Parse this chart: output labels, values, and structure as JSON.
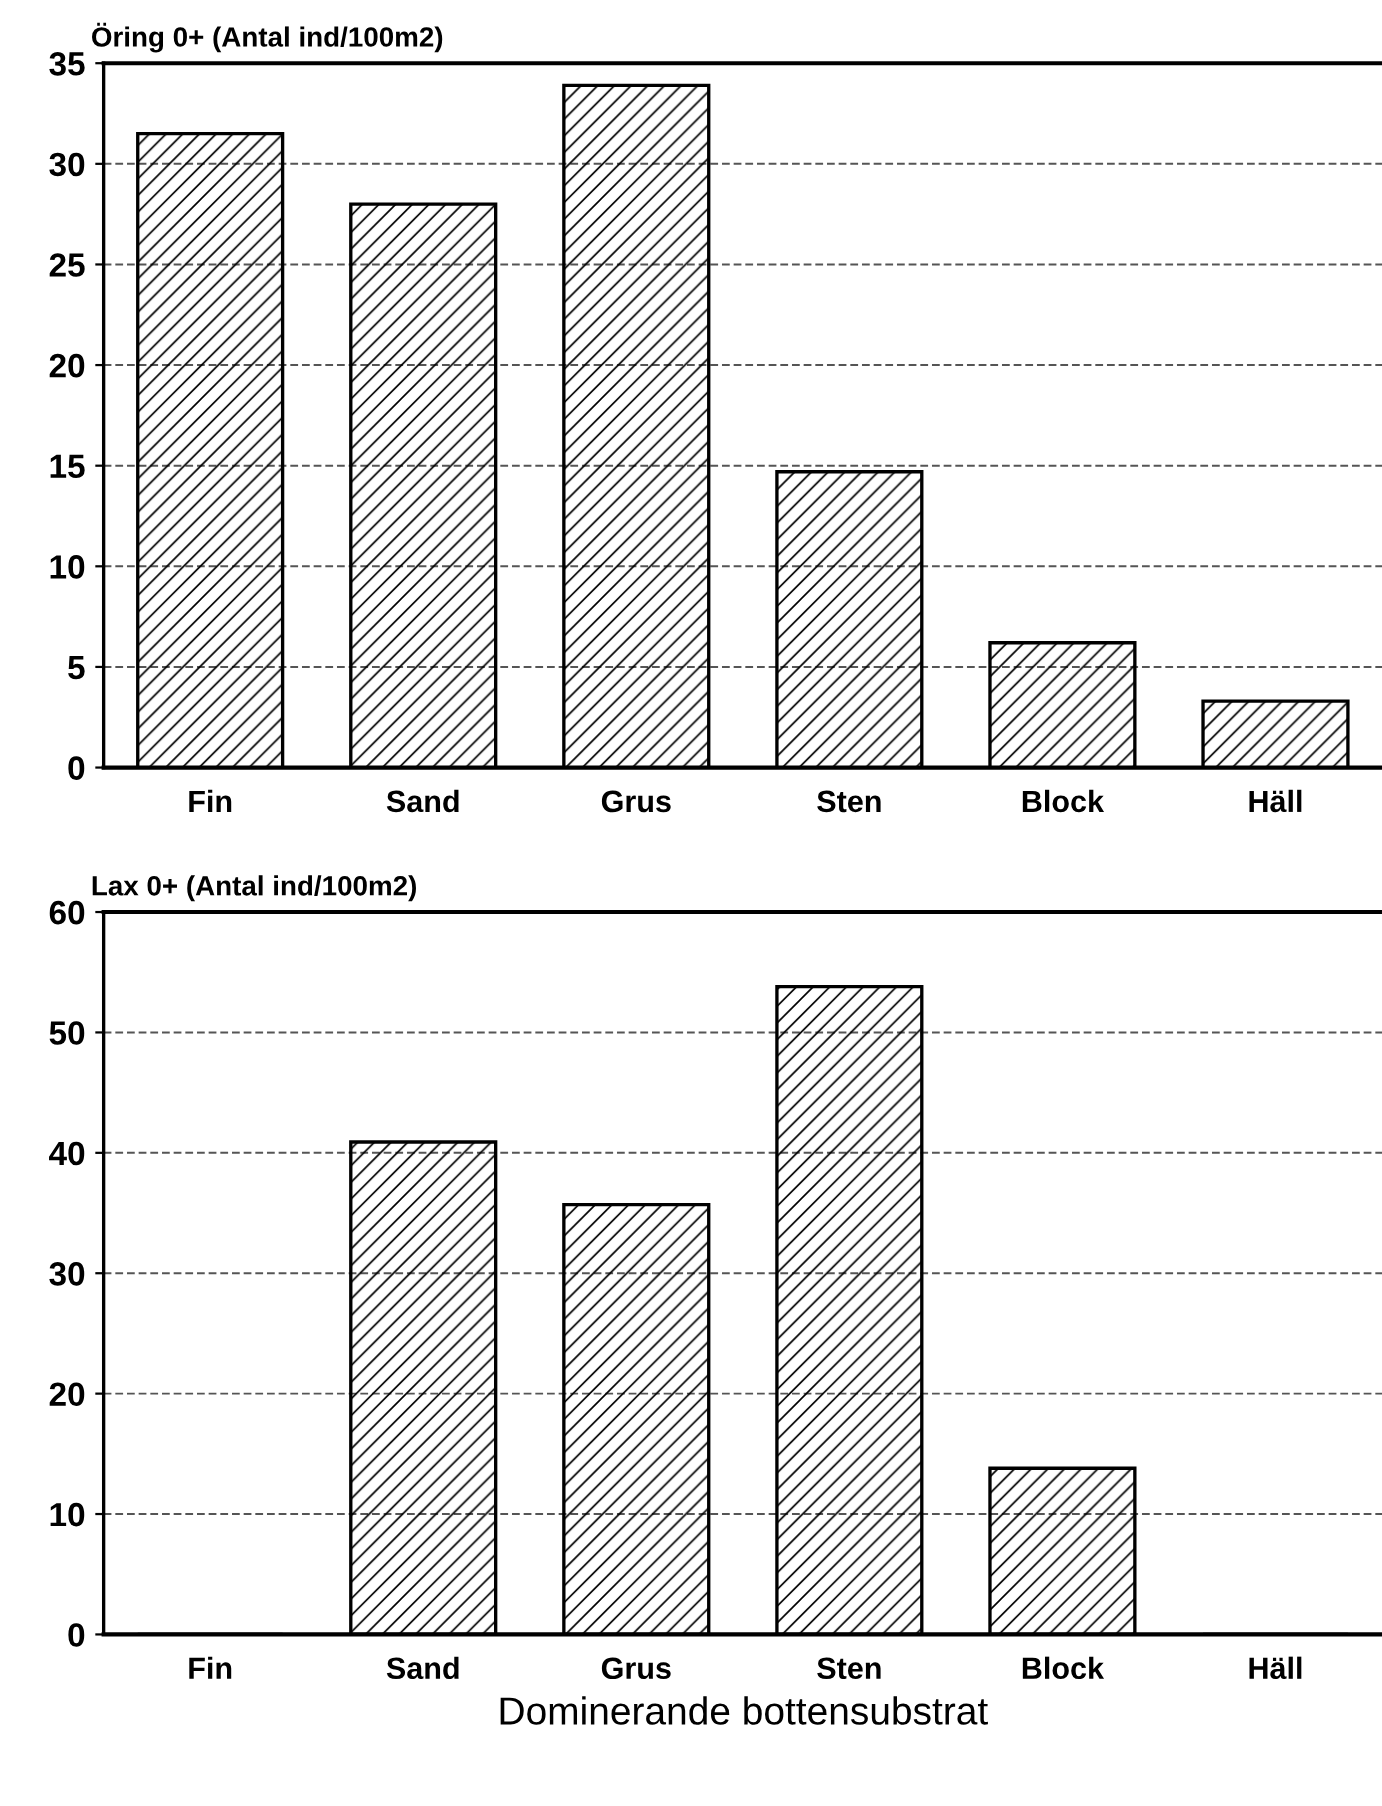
{
  "chart_data": [
    {
      "type": "bar",
      "title": "Öring 0+ (Antal ind/100m2)",
      "categories": [
        "Fin",
        "Sand",
        "Grus",
        "Sten",
        "Block",
        "Häll"
      ],
      "values": [
        31.5,
        28.0,
        33.9,
        14.7,
        6.2,
        3.3
      ],
      "color": "#000000",
      "ylim": [
        0,
        35
      ],
      "yticks": [
        0,
        5,
        10,
        15,
        20,
        25,
        30,
        35
      ],
      "grid": "y"
    },
    {
      "type": "bar",
      "title": "Lax 0+ (Antal ind/100m2)",
      "xlabel": "Dominerande bottensubstrat",
      "categories": [
        "Fin",
        "Sand",
        "Grus",
        "Sten",
        "Block",
        "Häll"
      ],
      "values": [
        0,
        40.9,
        35.7,
        53.8,
        13.8,
        0
      ],
      "color": "#000000",
      "ylim": [
        0,
        60
      ],
      "yticks": [
        0,
        10,
        20,
        30,
        40,
        50,
        60
      ],
      "grid": "y"
    }
  ]
}
